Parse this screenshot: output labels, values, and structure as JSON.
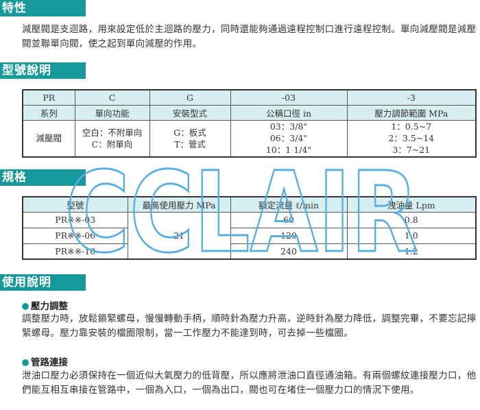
{
  "sections": {
    "features": {
      "title": "特性",
      "text": "減壓閥是支迴路，用來設定低於主迴路的壓力，同時還能夠通過遠程控制口進行遠程控制。單向減壓閥是減壓閥並聯單向閥，使之起到單向減壓的作用。"
    },
    "model": {
      "title": "型號說明",
      "codes": [
        "PR",
        "C",
        "G",
        "-03",
        "-3"
      ],
      "headers": [
        "系列",
        "單向功能",
        "安裝型式",
        "公稱口徑 in",
        "壓力調節範圍 MPa"
      ],
      "values": [
        [
          "減壓閥"
        ],
        [
          "空白：不附單向",
          "C：附單向"
        ],
        [
          "G：板式",
          "T：管式"
        ],
        [
          "03：3/8\"",
          "06：3/4\"",
          "10：1 1/4\""
        ],
        [
          "1：0.5~7",
          "2：3.5~14",
          "3：7~21"
        ]
      ]
    },
    "specs": {
      "title": "規格",
      "headers": [
        "型號",
        "最高使用壓力 MPa",
        "額定流量 ℓ/min",
        "洩油量 Lpm"
      ],
      "rows": [
        {
          "model": "PR※※-03",
          "flow": "60",
          "leak": "0.8"
        },
        {
          "model": "PR※※-06",
          "flow": "120",
          "leak": "1.0"
        },
        {
          "model": "PR※※-10",
          "flow": "240",
          "leak": "1.2"
        }
      ],
      "max_pressure": "21"
    },
    "usage": {
      "title": "使用說明",
      "items": [
        {
          "title": "壓力調整",
          "text": "調整壓力時，放鬆鎖緊螺母，慢慢轉動手柄，順時針為壓力升高，逆時針為壓力降低，調整完畢，不要忘記擰緊螺母。壓力靠安裝的檔圈限制，當一工作壓力不能達到時，可去掉一些檔圈。"
        },
        {
          "title": "管路連接",
          "text": "泄油口壓力必須保持在一個近似大氣壓力的低背壓，所以應將泄油口直徑通油箱。有兩個螺紋連接壓力口，他們能互相互串接在管路中，一個為入口，一個為出口，閥也可在堵住一個壓力口的情況下使用。"
        }
      ]
    }
  },
  "watermark": "CCLAIR",
  "colors": {
    "accent": "#17999c",
    "table_header": "#d7eff1",
    "watermark": "#5aaee0"
  }
}
